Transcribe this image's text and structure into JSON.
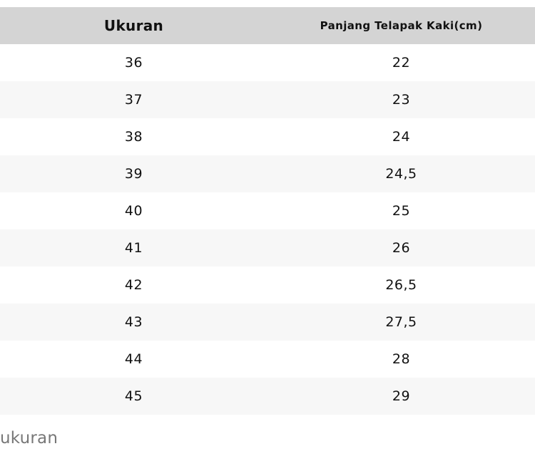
{
  "table": {
    "headers": [
      "Ukuran",
      "Panjang Telapak Kaki(cm)"
    ],
    "rows": [
      [
        "36",
        "22"
      ],
      [
        "37",
        "23"
      ],
      [
        "38",
        "24"
      ],
      [
        "39",
        "24,5"
      ],
      [
        "40",
        "25"
      ],
      [
        "41",
        "26"
      ],
      [
        "42",
        "26,5"
      ],
      [
        "43",
        "27,5"
      ],
      [
        "44",
        "28"
      ],
      [
        "45",
        "29"
      ]
    ]
  },
  "caption": "ukuran",
  "colors": {
    "header_bg": "#d4d4d4",
    "alt_row_bg": "#f7f7f7",
    "caption_text": "#777777"
  }
}
